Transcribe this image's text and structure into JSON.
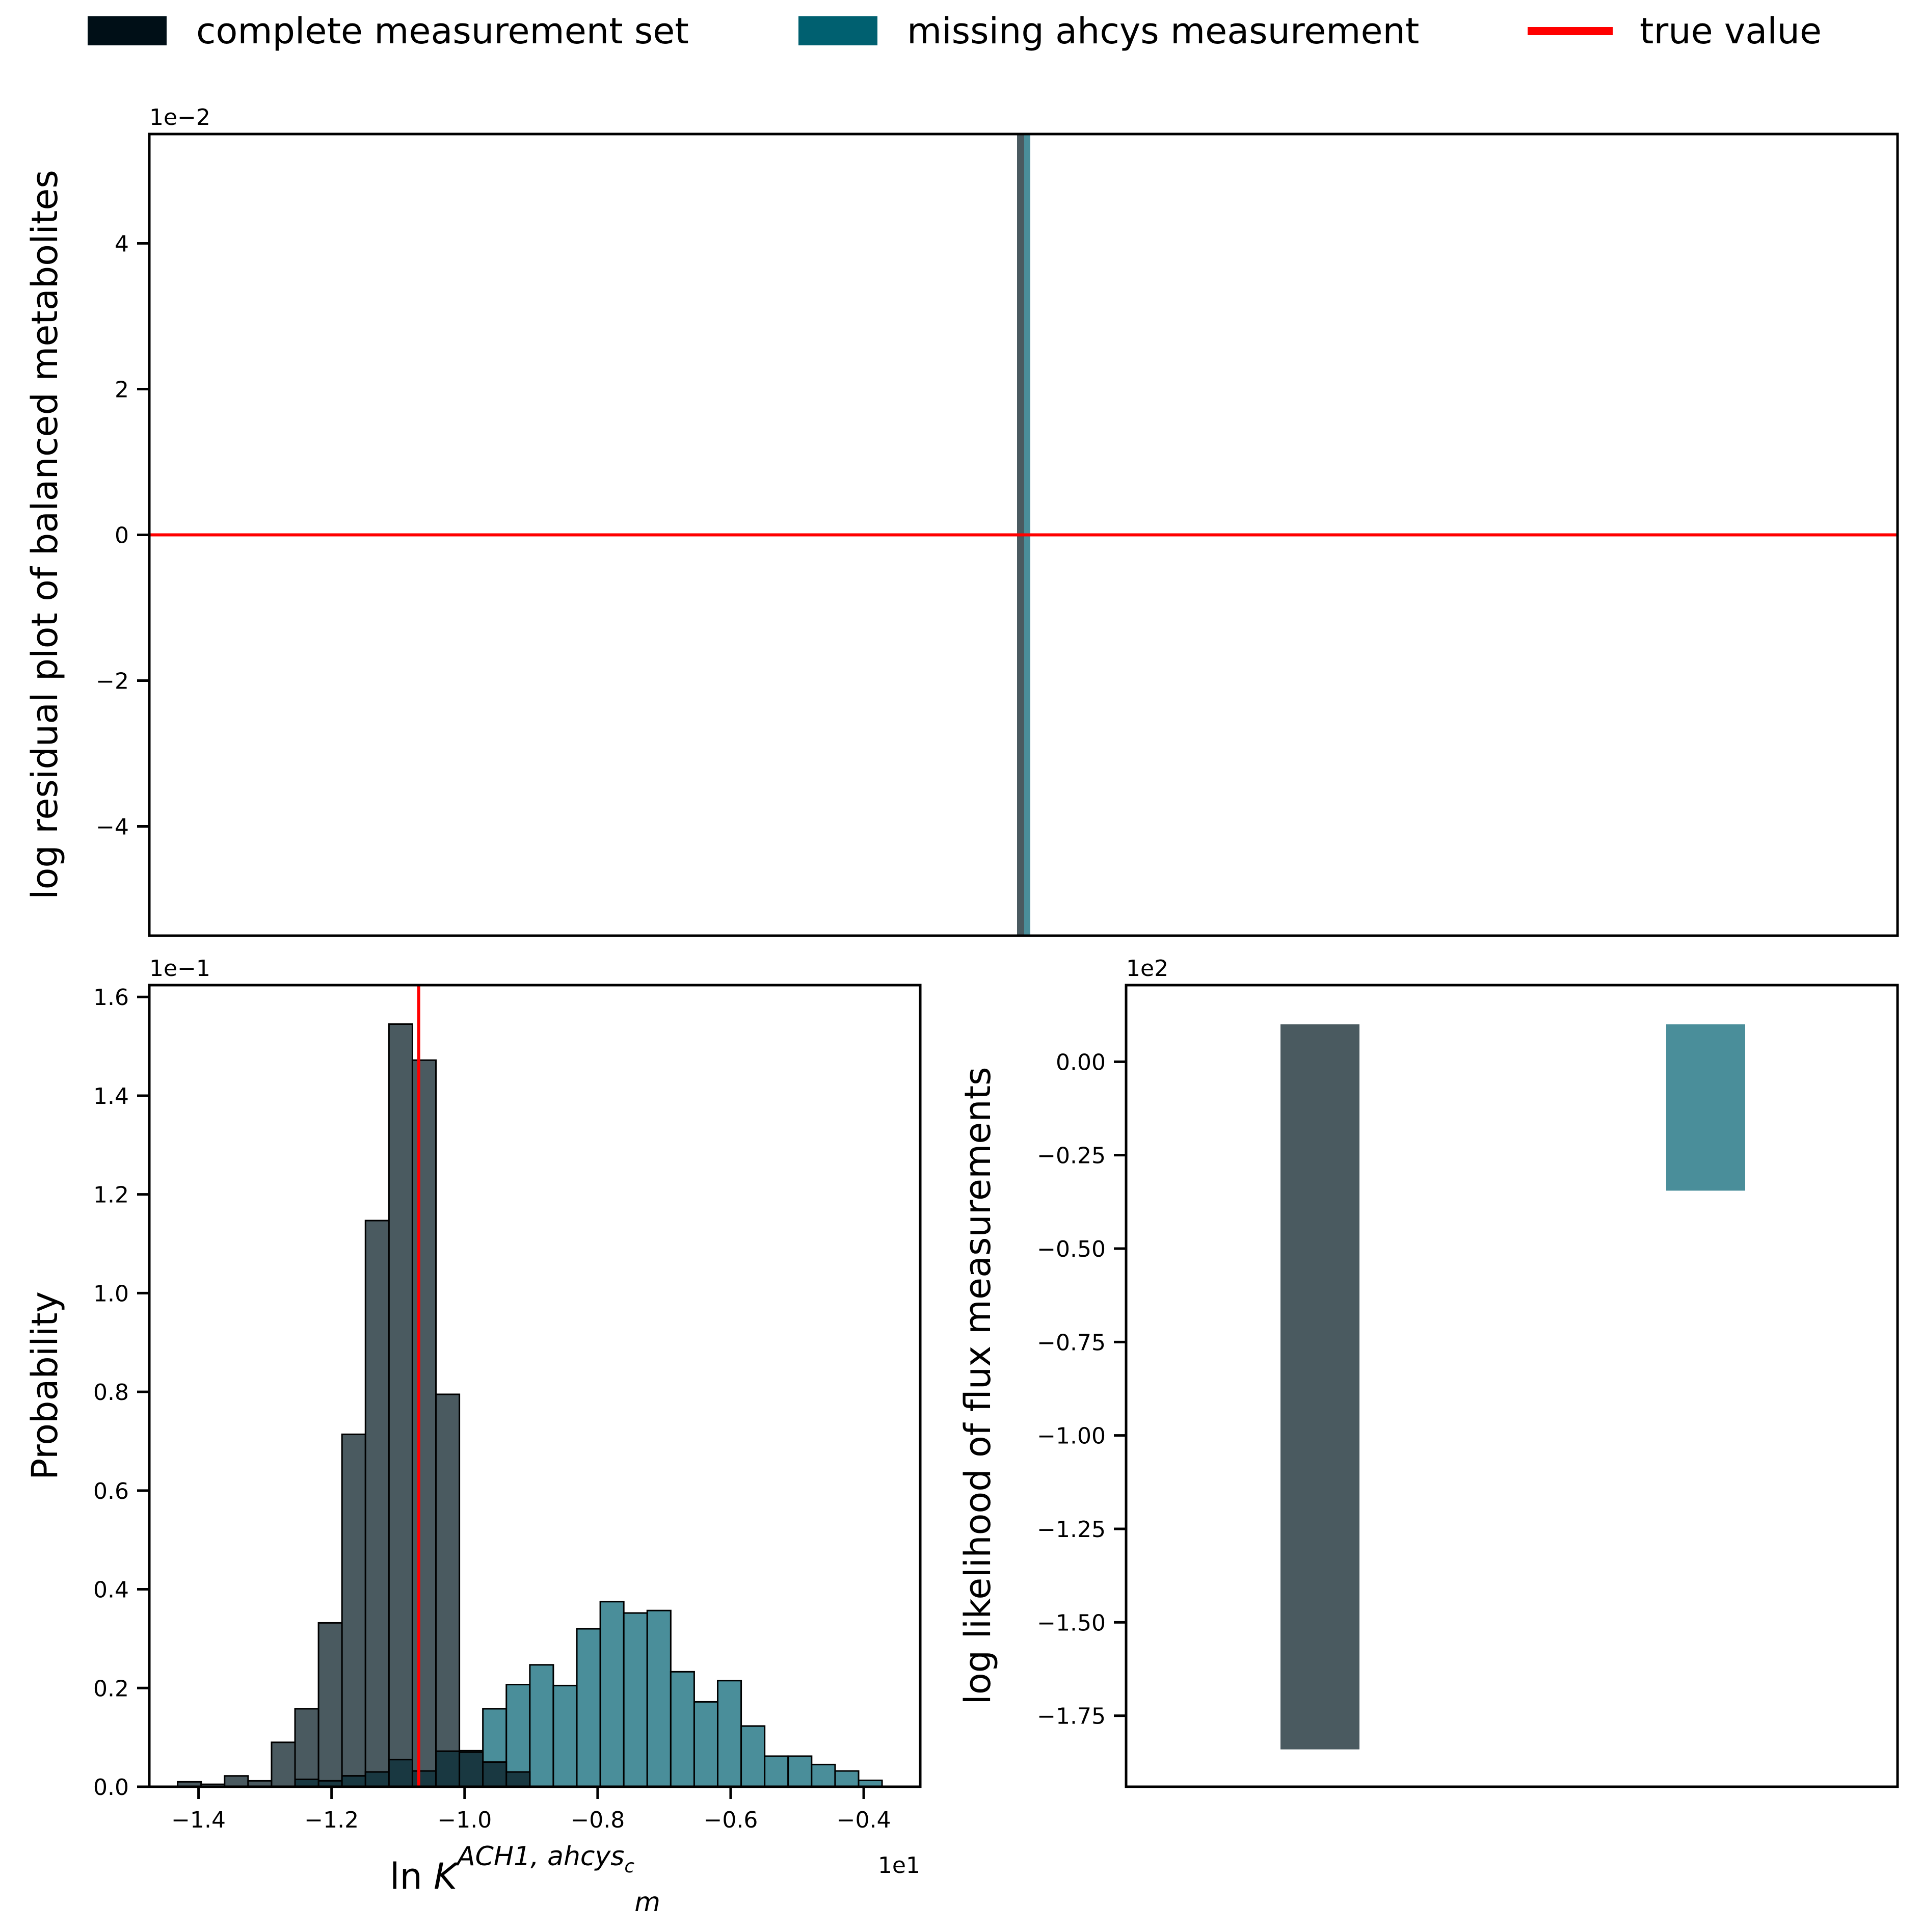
{
  "legend": {
    "location": "top",
    "items": [
      {
        "label": "complete measurement set",
        "color": "#000f17",
        "kind": "patch"
      },
      {
        "label": "missing ahcys measurement",
        "color": "#006070",
        "kind": "patch"
      },
      {
        "label": "true value",
        "color": "#ff0000",
        "kind": "line"
      }
    ]
  },
  "colors": {
    "complete": "#4a5a60",
    "missing": "#4a8e9a",
    "overlap": "#193841",
    "true_value": "#ff0000"
  },
  "chart_data": [
    {
      "id": "residual",
      "type": "bar",
      "ylabel": "log residual plot of balanced metabolites",
      "y_offset_label": "1e−2",
      "ylim": [
        -5.5,
        5.5
      ],
      "yticks": [
        -4,
        -2,
        0,
        2,
        4
      ],
      "ytick_labels": [
        "−4",
        "−2",
        "0",
        "2",
        "4"
      ],
      "true_value_y": 0,
      "grid": false
    },
    {
      "id": "histogram",
      "type": "bar",
      "xlabel": "ln K_m^{ACH1, ahcys_c}",
      "xlabel_main": "ln ",
      "xlabel_symbol": "K",
      "xlabel_sup": "ACH1, ahcys",
      "xlabel_sup_sub": "c",
      "xlabel_sub": "m",
      "ylabel": "Probability",
      "x_offset_label": "1e1",
      "y_offset_label": "1e−1",
      "xlim": [
        -1.474,
        -0.315
      ],
      "ylim": [
        0,
        1.624
      ],
      "xticks": [
        -1.4,
        -1.2,
        -1.0,
        -0.8,
        -0.6,
        -0.4
      ],
      "xtick_labels": [
        "−1.4",
        "−1.2",
        "−1.0",
        "−0.8",
        "−0.6",
        "−0.4"
      ],
      "yticks": [
        0.0,
        0.2,
        0.4,
        0.6,
        0.8,
        1.0,
        1.2,
        1.4,
        1.6
      ],
      "ytick_labels": [
        "0.0",
        "0.2",
        "0.4",
        "0.6",
        "0.8",
        "1.0",
        "1.2",
        "1.4",
        "1.6"
      ],
      "true_value_x": -1.069,
      "grid": false,
      "series": [
        {
          "name": "complete measurement set",
          "bin_width": 0.0353,
          "bins": [
            [
              -1.4314,
              0.01
            ],
            [
              -1.3961,
              0.005
            ],
            [
              -1.3608,
              0.022
            ],
            [
              -1.3255,
              0.012
            ],
            [
              -1.2902,
              0.09
            ],
            [
              -1.2549,
              0.158
            ],
            [
              -1.2196,
              0.332
            ],
            [
              -1.1843,
              0.714
            ],
            [
              -1.149,
              1.147
            ],
            [
              -1.1137,
              1.545
            ],
            [
              -1.0784,
              1.472
            ],
            [
              -1.0431,
              0.795
            ],
            [
              -1.0078,
              0.07
            ],
            [
              -0.9725,
              0.05
            ],
            [
              -0.9372,
              0.03
            ]
          ]
        },
        {
          "name": "missing ahcys measurement",
          "bin_width": 0.0353,
          "bins": [
            [
              -1.2549,
              0.015
            ],
            [
              -1.2196,
              0.012
            ],
            [
              -1.1843,
              0.022
            ],
            [
              -1.149,
              0.03
            ],
            [
              -1.1137,
              0.055
            ],
            [
              -1.0784,
              0.032
            ],
            [
              -1.0431,
              0.072
            ],
            [
              -1.0078,
              0.073
            ],
            [
              -0.9725,
              0.158
            ],
            [
              -0.9372,
              0.207
            ],
            [
              -0.9019,
              0.247
            ],
            [
              -0.8666,
              0.205
            ],
            [
              -0.8313,
              0.32
            ],
            [
              -0.796,
              0.375
            ],
            [
              -0.7607,
              0.352
            ],
            [
              -0.7254,
              0.357
            ],
            [
              -0.6901,
              0.233
            ],
            [
              -0.6548,
              0.172
            ],
            [
              -0.6195,
              0.215
            ],
            [
              -0.5842,
              0.123
            ],
            [
              -0.5489,
              0.062
            ],
            [
              -0.5136,
              0.062
            ],
            [
              -0.4783,
              0.045
            ],
            [
              -0.443,
              0.032
            ],
            [
              -0.4077,
              0.013
            ]
          ]
        }
      ]
    },
    {
      "id": "likelihood",
      "type": "bar",
      "ylabel": "log likelihood of flux measurements",
      "y_offset_label": "1e2",
      "ylim": [
        -1.94,
        0.205
      ],
      "yticks": [
        0.0,
        -0.25,
        -0.5,
        -0.75,
        -1.0,
        -1.25,
        -1.5,
        -1.75
      ],
      "ytick_labels": [
        "0.00",
        "−0.25",
        "−0.50",
        "−0.75",
        "−1.00",
        "−1.25",
        "−1.50",
        "−1.75"
      ],
      "grid": false,
      "series": [
        {
          "name": "complete measurement set",
          "top": 0.1,
          "bottom": -1.84
        },
        {
          "name": "missing ahcys measurement",
          "top": 0.1,
          "bottom": -0.345
        }
      ]
    }
  ]
}
